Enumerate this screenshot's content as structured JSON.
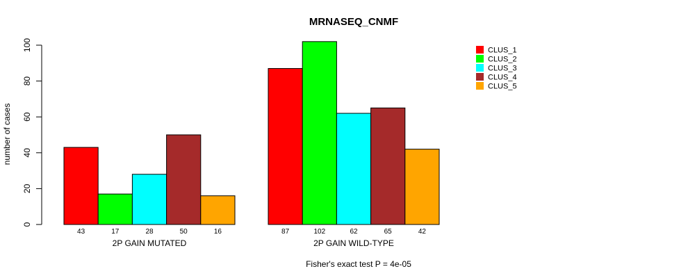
{
  "chart_data": {
    "type": "bar",
    "title": "MRNASEQ_CNMF",
    "ylabel": "number of cases",
    "xlabel": "",
    "ylim": [
      0,
      100
    ],
    "yticks": [
      0,
      20,
      40,
      60,
      80,
      100
    ],
    "grid": false,
    "legend_position": "top-right",
    "groups": [
      "2P GAIN MUTATED",
      "2P GAIN WILD-TYPE"
    ],
    "series": [
      {
        "name": "CLUS_1",
        "color": "#ff0000",
        "values": [
          43,
          87
        ]
      },
      {
        "name": "CLUS_2",
        "color": "#00ff00",
        "values": [
          17,
          102
        ]
      },
      {
        "name": "CLUS_3",
        "color": "#00ffff",
        "values": [
          28,
          62
        ]
      },
      {
        "name": "CLUS_4",
        "color": "#a52a2a",
        "values": [
          50,
          65
        ]
      },
      {
        "name": "CLUS_5",
        "color": "#ffa500",
        "values": [
          16,
          42
        ]
      }
    ],
    "footnote": "Fisher's exact test P = 4e-05"
  }
}
